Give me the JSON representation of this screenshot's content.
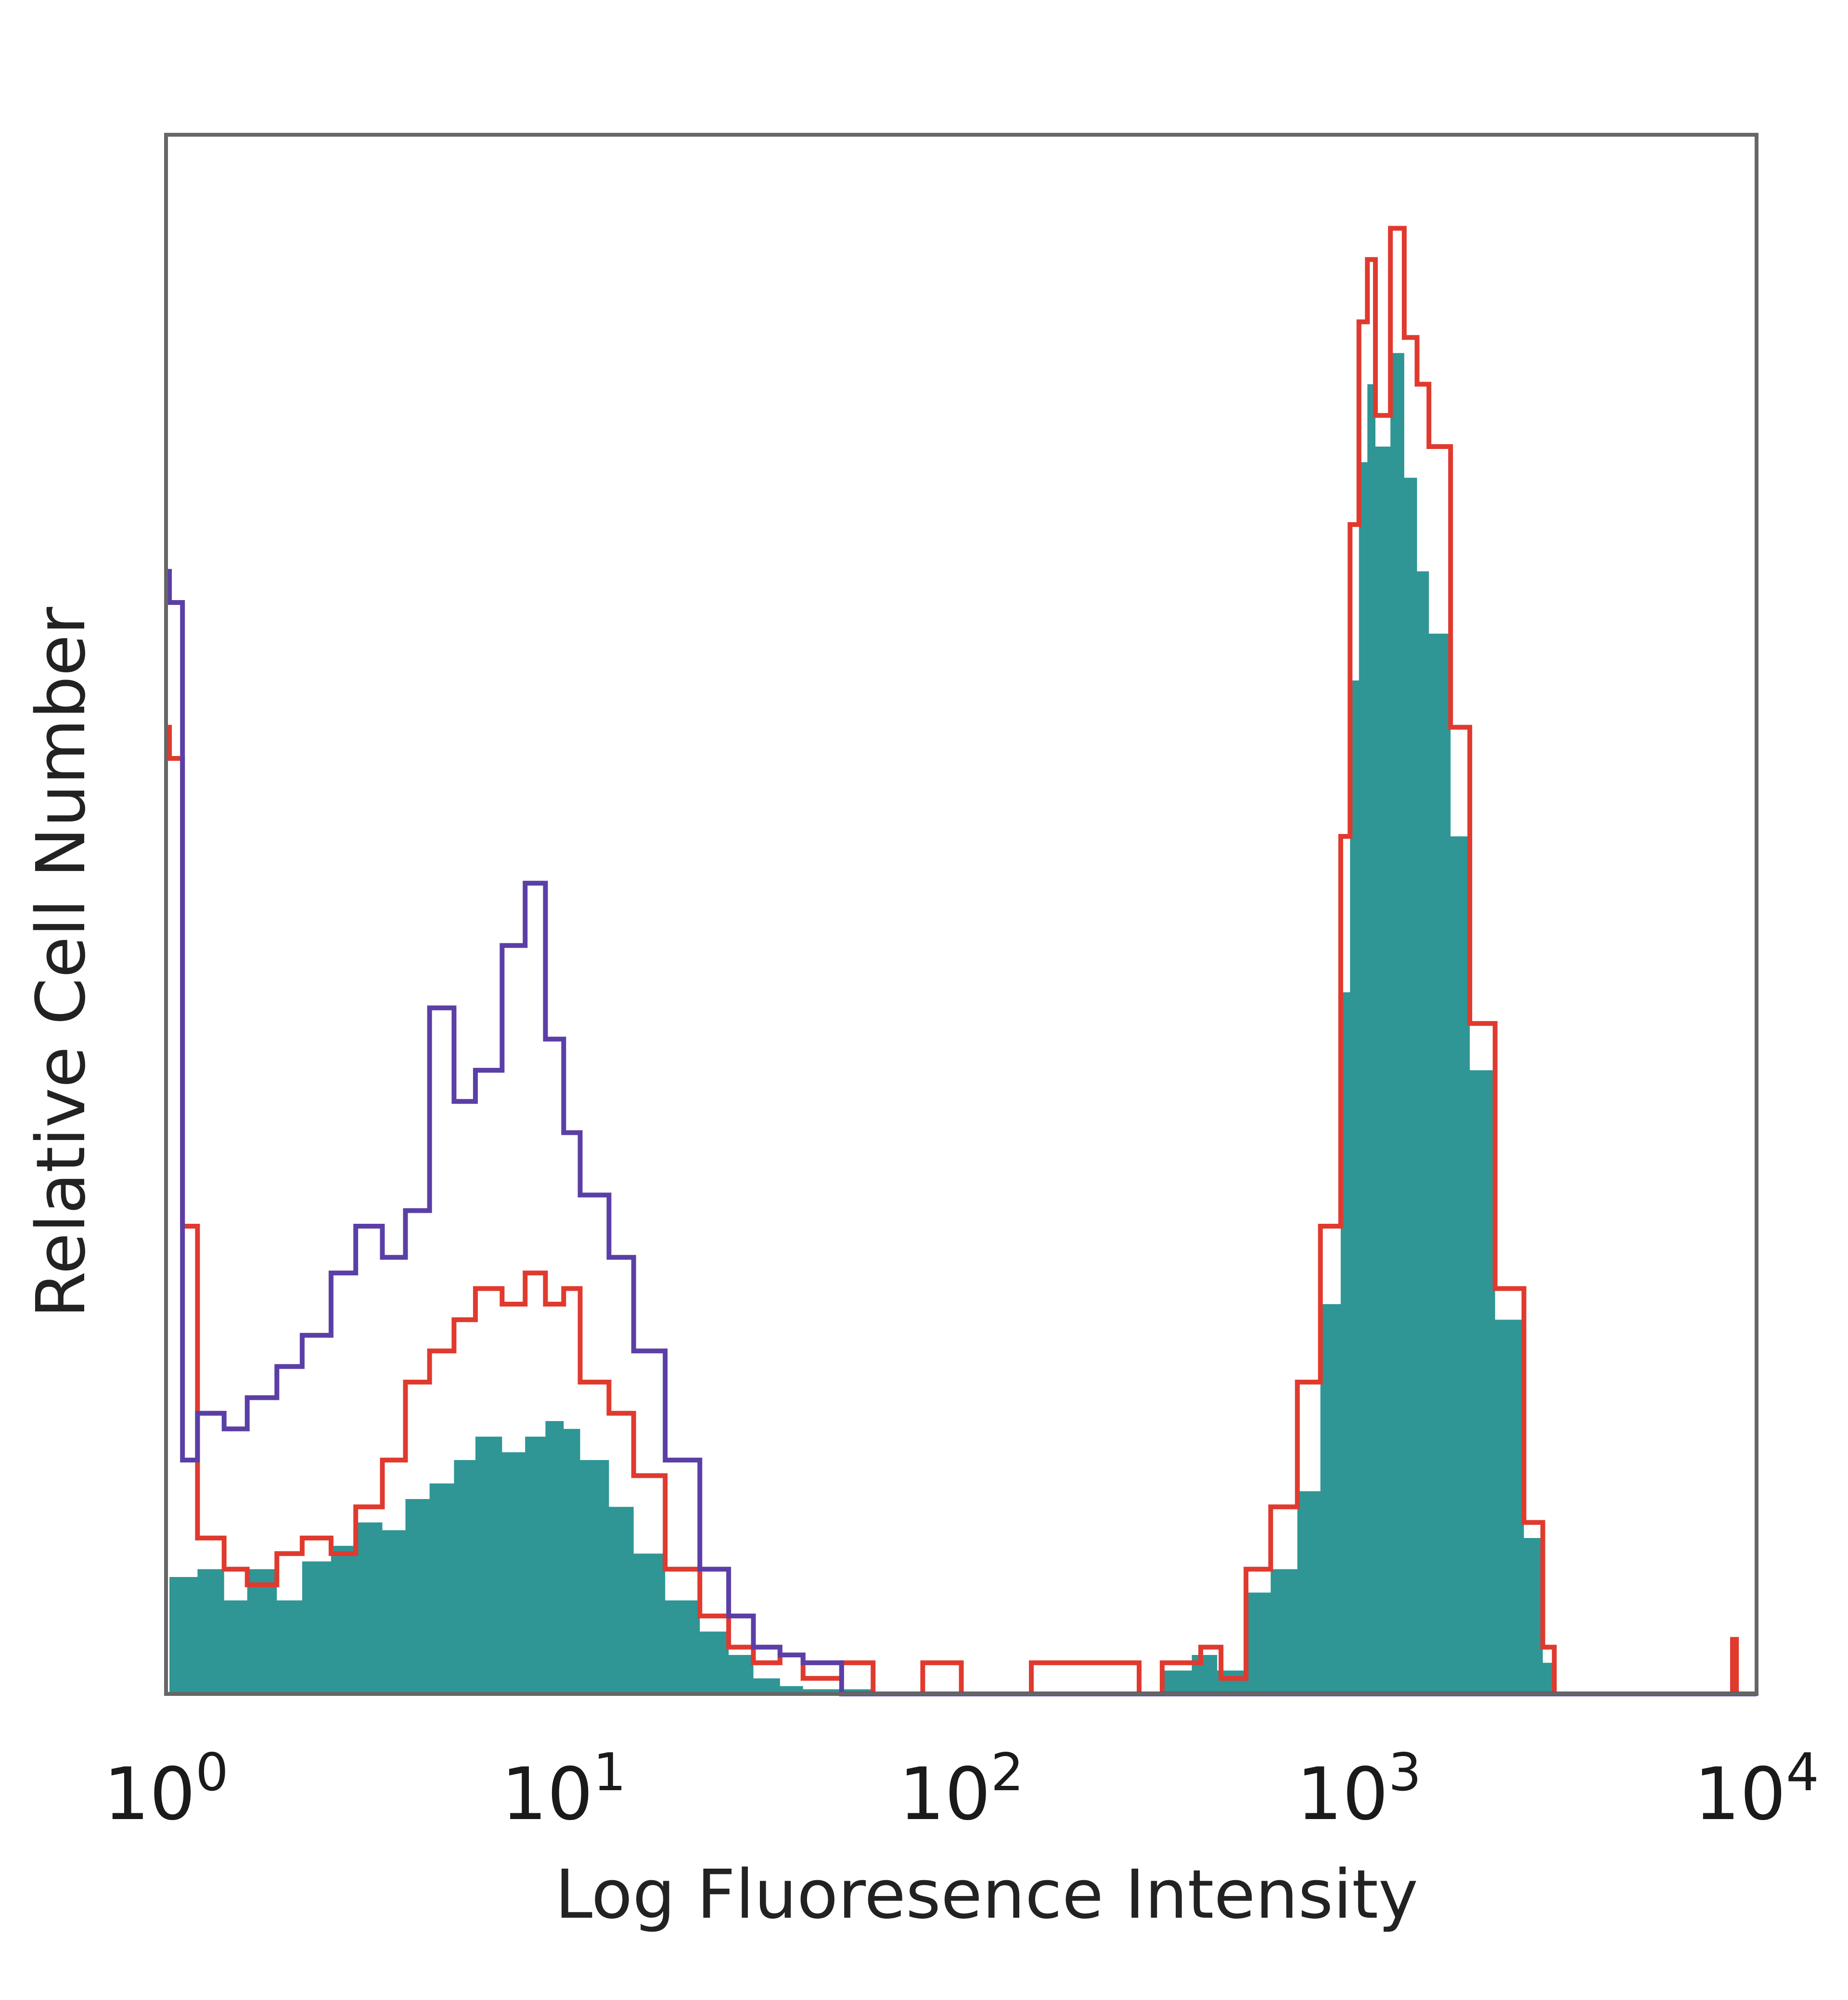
{
  "chart_data": {
    "type": "area",
    "xlabel": "Log Fluoresence Intensity",
    "ylabel": "Relative Cell Number",
    "x_scale": "log",
    "xlim": [
      1,
      10000
    ],
    "ylim": [
      0,
      100
    ],
    "grid": false,
    "x_ticks": [
      {
        "base": "10",
        "exp": "0",
        "value": 1
      },
      {
        "base": "10",
        "exp": "1",
        "value": 10
      },
      {
        "base": "10",
        "exp": "2",
        "value": 100
      },
      {
        "base": "10",
        "exp": "3",
        "value": 1000
      },
      {
        "base": "10",
        "exp": "4",
        "value": 10000
      }
    ],
    "series": [
      {
        "style": "filled",
        "color": "#2f9595",
        "points": [
          [
            1.0,
            0
          ],
          [
            1.02,
            7.5
          ],
          [
            1.2,
            8
          ],
          [
            1.4,
            6
          ],
          [
            1.6,
            8
          ],
          [
            1.9,
            6
          ],
          [
            2.2,
            8.5
          ],
          [
            2.6,
            9.5
          ],
          [
            3.0,
            11
          ],
          [
            3.5,
            10.5
          ],
          [
            4.0,
            12.5
          ],
          [
            4.6,
            13.5
          ],
          [
            5.3,
            15
          ],
          [
            6.0,
            16.5
          ],
          [
            7.0,
            15.5
          ],
          [
            8.0,
            16.5
          ],
          [
            9.0,
            17.5
          ],
          [
            10,
            17
          ],
          [
            11,
            15
          ],
          [
            13,
            12
          ],
          [
            15,
            9
          ],
          [
            18,
            6
          ],
          [
            22,
            4
          ],
          [
            26,
            2.5
          ],
          [
            30,
            1
          ],
          [
            35,
            0.5
          ],
          [
            40,
            0.3
          ],
          [
            60,
            0
          ],
          [
            280,
            0
          ],
          [
            320,
            1.5
          ],
          [
            380,
            2.5
          ],
          [
            440,
            1.5
          ],
          [
            520,
            6.5
          ],
          [
            600,
            8
          ],
          [
            700,
            13
          ],
          [
            800,
            25
          ],
          [
            900,
            45
          ],
          [
            950,
            65
          ],
          [
            1000,
            79
          ],
          [
            1050,
            84
          ],
          [
            1100,
            80
          ],
          [
            1200,
            86
          ],
          [
            1300,
            78
          ],
          [
            1400,
            72
          ],
          [
            1500,
            68
          ],
          [
            1700,
            55
          ],
          [
            1900,
            40
          ],
          [
            2200,
            24
          ],
          [
            2600,
            10
          ],
          [
            2900,
            2
          ],
          [
            3100,
            0
          ],
          [
            10000,
            0
          ]
        ]
      },
      {
        "style": "line",
        "color": "#e03a2f",
        "points": [
          [
            1.0,
            62
          ],
          [
            1.02,
            60
          ],
          [
            1.1,
            30
          ],
          [
            1.2,
            10
          ],
          [
            1.4,
            8
          ],
          [
            1.6,
            7
          ],
          [
            1.9,
            9
          ],
          [
            2.2,
            10
          ],
          [
            2.6,
            9
          ],
          [
            3.0,
            12
          ],
          [
            3.5,
            15
          ],
          [
            4.0,
            20
          ],
          [
            4.6,
            22
          ],
          [
            5.3,
            24
          ],
          [
            6.0,
            26
          ],
          [
            7.0,
            25
          ],
          [
            8.0,
            27
          ],
          [
            9.0,
            25
          ],
          [
            10,
            26
          ],
          [
            11,
            20
          ],
          [
            13,
            18
          ],
          [
            15,
            14
          ],
          [
            18,
            8
          ],
          [
            22,
            5
          ],
          [
            26,
            3
          ],
          [
            30,
            2
          ],
          [
            35,
            2.5
          ],
          [
            40,
            1
          ],
          [
            50,
            2
          ],
          [
            60,
            0
          ],
          [
            80,
            2
          ],
          [
            100,
            0
          ],
          [
            150,
            2
          ],
          [
            280,
            0
          ],
          [
            320,
            2
          ],
          [
            400,
            3
          ],
          [
            450,
            1
          ],
          [
            520,
            8
          ],
          [
            600,
            12
          ],
          [
            700,
            20
          ],
          [
            800,
            30
          ],
          [
            900,
            55
          ],
          [
            950,
            75
          ],
          [
            1000,
            88
          ],
          [
            1050,
            92
          ],
          [
            1100,
            82
          ],
          [
            1200,
            94
          ],
          [
            1300,
            87
          ],
          [
            1400,
            84
          ],
          [
            1500,
            80
          ],
          [
            1700,
            62
          ],
          [
            1900,
            43
          ],
          [
            2200,
            26
          ],
          [
            2600,
            11
          ],
          [
            2900,
            3
          ],
          [
            3100,
            0
          ],
          [
            8500,
            0
          ],
          [
            8700,
            3.5
          ],
          [
            8900,
            0
          ],
          [
            10000,
            0
          ]
        ]
      },
      {
        "style": "line",
        "color": "#5b3fa6",
        "points": [
          [
            1.0,
            72
          ],
          [
            1.02,
            70
          ],
          [
            1.1,
            15
          ],
          [
            1.2,
            18
          ],
          [
            1.4,
            17
          ],
          [
            1.6,
            19
          ],
          [
            1.9,
            21
          ],
          [
            2.2,
            23
          ],
          [
            2.6,
            27
          ],
          [
            3.0,
            30
          ],
          [
            3.5,
            28
          ],
          [
            4.0,
            31
          ],
          [
            4.6,
            44
          ],
          [
            5.3,
            38
          ],
          [
            6.0,
            40
          ],
          [
            7.0,
            48
          ],
          [
            8.0,
            52
          ],
          [
            9.0,
            42
          ],
          [
            10,
            36
          ],
          [
            11,
            32
          ],
          [
            13,
            28
          ],
          [
            15,
            22
          ],
          [
            18,
            15
          ],
          [
            22,
            8
          ],
          [
            26,
            5
          ],
          [
            30,
            3
          ],
          [
            35,
            2.5
          ],
          [
            40,
            2
          ],
          [
            50,
            0
          ],
          [
            60,
            0
          ],
          [
            10000,
            0
          ]
        ]
      }
    ]
  }
}
